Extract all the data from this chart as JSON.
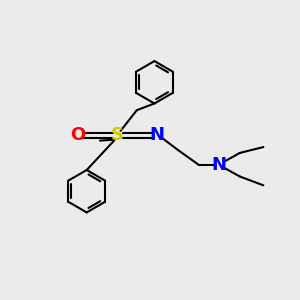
{
  "background_color": "#ebebeb",
  "atom_colors": {
    "S": "#cccc00",
    "N_imine": "#0000ff",
    "N_amine": "#0000ff",
    "O": "#ff0000",
    "C": "#000000"
  },
  "bond_color": "#000000",
  "bond_width": 1.5,
  "font_size_atoms": 13,
  "fig_size": [
    3.0,
    3.0
  ],
  "dpi": 100
}
